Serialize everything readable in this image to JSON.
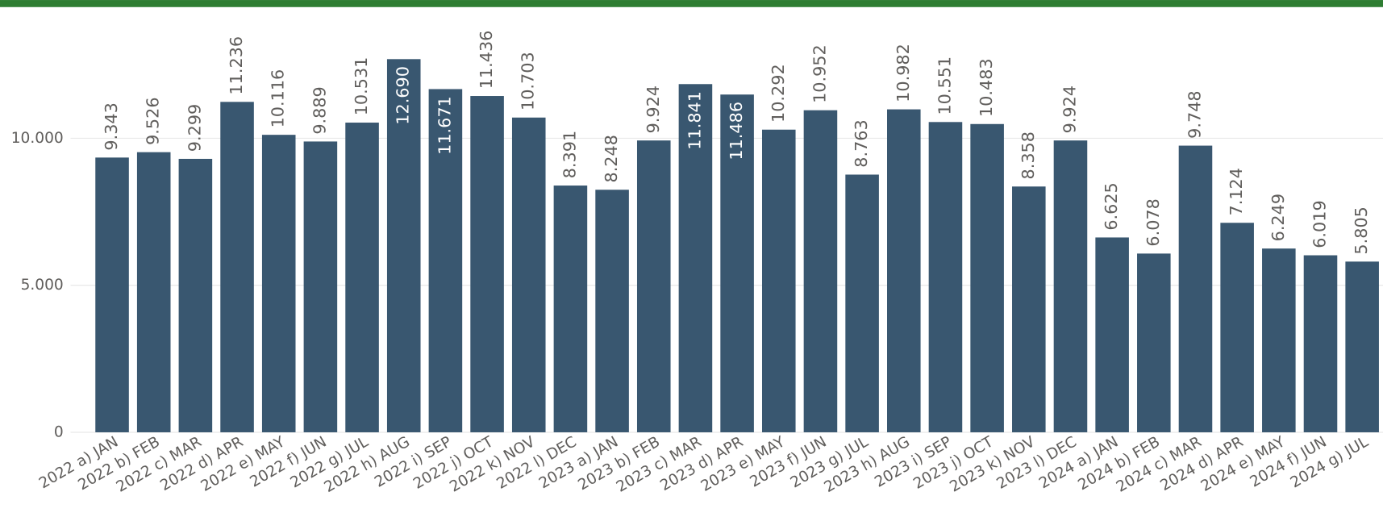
{
  "chart_data": {
    "type": "bar",
    "categories": [
      "2022 a) JAN",
      "2022 b) FEB",
      "2022 c) MAR",
      "2022 d) APR",
      "2022 e) MAY",
      "2022 f) JUN",
      "2022 g) JUL",
      "2022 h) AUG",
      "2022 i) SEP",
      "2022 j) OCT",
      "2022 k) NOV",
      "2022 l) DEC",
      "2023 a) JAN",
      "2023 b) FEB",
      "2023 c) MAR",
      "2023 d) APR",
      "2023 e) MAY",
      "2023 f) JUN",
      "2023 g) JUL",
      "2023 h) AUG",
      "2023 i) SEP",
      "2023 j) OCT",
      "2023 k) NOV",
      "2023 l) DEC",
      "2024 a) JAN",
      "2024 b) FEB",
      "2024 c) MAR",
      "2024 d) APR",
      "2024 e) MAY",
      "2024 f) JUN",
      "2024 g) JUL"
    ],
    "values": [
      9343,
      9526,
      9299,
      11236,
      10116,
      9889,
      10531,
      12690,
      11671,
      11436,
      10703,
      8391,
      8248,
      9924,
      11841,
      11486,
      10292,
      10952,
      8763,
      10982,
      10551,
      10483,
      8358,
      9924,
      6625,
      6078,
      9748,
      7124,
      6249,
      6019,
      5805
    ],
    "value_labels": [
      "9.343",
      "9.526",
      "9.299",
      "11.236",
      "10.116",
      "9.889",
      "10.531",
      "12.690",
      "11.671",
      "11.436",
      "10.703",
      "8.391",
      "8.248",
      "9.924",
      "11.841",
      "11.486",
      "10.292",
      "10.952",
      "8.763",
      "10.982",
      "10.551",
      "10.483",
      "8.358",
      "9.924",
      "6.625",
      "6.078",
      "9.748",
      "7.124",
      "6.249",
      "6.019",
      "5.805"
    ],
    "color": "#395770",
    "ylim": [
      0,
      14400
    ],
    "yticks": [
      0,
      {
        "value": 5000,
        "label": "5.000"
      },
      {
        "value": 10000,
        "label": "10.000"
      }
    ],
    "grid": true
  }
}
